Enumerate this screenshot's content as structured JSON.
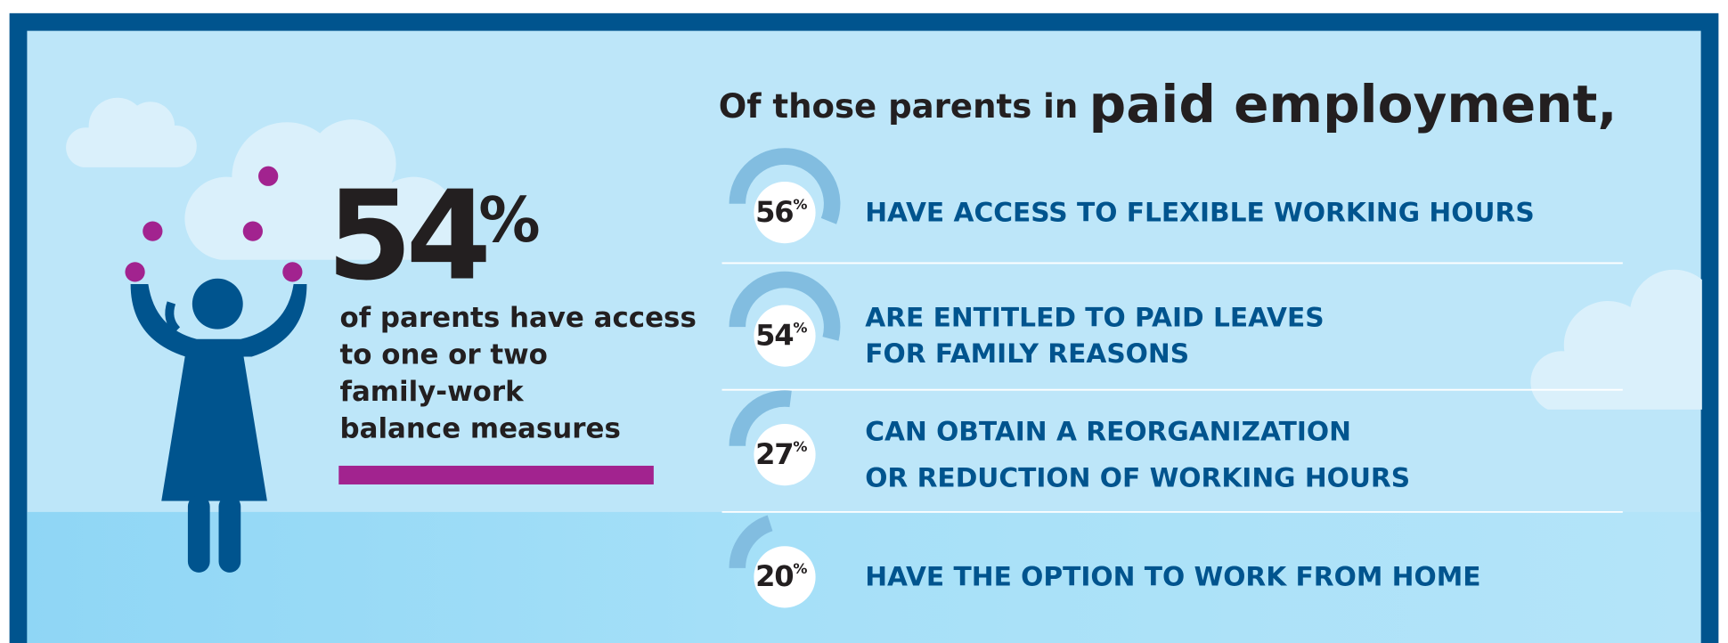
{
  "headline": {
    "value": 54,
    "unit": "%",
    "text": [
      "of parents have access",
      "to one or two",
      "family-work",
      "balance measures"
    ]
  },
  "section": {
    "title_lead": "Of those parents in",
    "title_emphasis": "paid employment,"
  },
  "items": [
    {
      "value": 56,
      "unit": "%",
      "text": [
        "HAVE ACCESS TO FLEXIBLE WORKING HOURS"
      ]
    },
    {
      "value": 54,
      "unit": "%",
      "text": [
        "ARE ENTITLED TO PAID LEAVES",
        "FOR FAMILY REASONS"
      ]
    },
    {
      "value": 27,
      "unit": "%",
      "text": [
        "CAN OBTAIN A REORGANIZATION",
        "OR REDUCTION OF WORKING HOURS"
      ]
    },
    {
      "value": 20,
      "unit": "%",
      "text": [
        "HAVE THE OPTION TO WORK FROM HOME"
      ]
    }
  ]
}
